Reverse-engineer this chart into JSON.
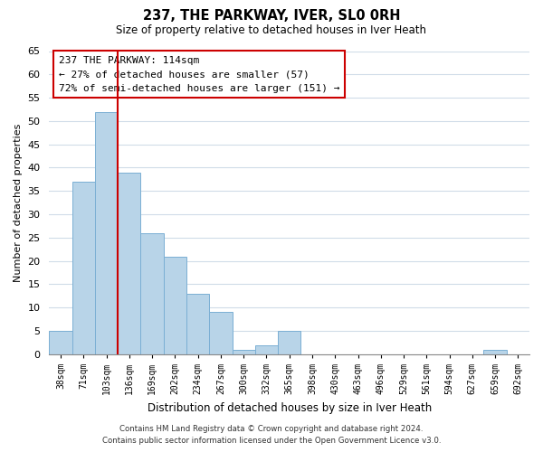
{
  "title": "237, THE PARKWAY, IVER, SL0 0RH",
  "subtitle": "Size of property relative to detached houses in Iver Heath",
  "xlabel": "Distribution of detached houses by size in Iver Heath",
  "ylabel": "Number of detached properties",
  "bar_labels": [
    "38sqm",
    "71sqm",
    "103sqm",
    "136sqm",
    "169sqm",
    "202sqm",
    "234sqm",
    "267sqm",
    "300sqm",
    "332sqm",
    "365sqm",
    "398sqm",
    "430sqm",
    "463sqm",
    "496sqm",
    "529sqm",
    "561sqm",
    "594sqm",
    "627sqm",
    "659sqm",
    "692sqm"
  ],
  "bar_values": [
    5,
    37,
    52,
    39,
    26,
    21,
    13,
    9,
    1,
    2,
    5,
    0,
    0,
    0,
    0,
    0,
    0,
    0,
    0,
    1,
    0
  ],
  "bar_color": "#b8d4e8",
  "bar_edge_color": "#7bafd4",
  "vline_index": 2,
  "vline_color": "#cc0000",
  "ylim": [
    0,
    65
  ],
  "yticks": [
    0,
    5,
    10,
    15,
    20,
    25,
    30,
    35,
    40,
    45,
    50,
    55,
    60,
    65
  ],
  "annotation_line0": "237 THE PARKWAY: 114sqm",
  "annotation_line1": "← 27% of detached houses are smaller (57)",
  "annotation_line2": "72% of semi-detached houses are larger (151) →",
  "annotation_box_color": "#ffffff",
  "annotation_box_edge": "#cc0000",
  "footer_line1": "Contains HM Land Registry data © Crown copyright and database right 2024.",
  "footer_line2": "Contains public sector information licensed under the Open Government Licence v3.0.",
  "bg_color": "#ffffff",
  "grid_color": "#d0dce8"
}
